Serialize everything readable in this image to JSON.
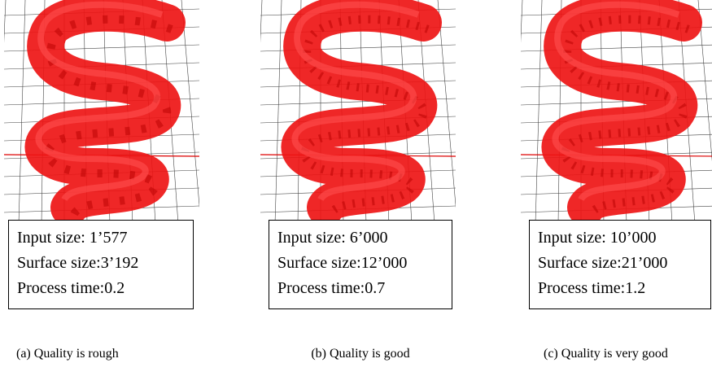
{
  "panels": [
    {
      "lines": [
        "Input size: 1’577",
        "Surface size:3’192",
        "Process time:0.2"
      ],
      "caption": "(a) Quality is rough"
    },
    {
      "lines": [
        "Input size: 6’000",
        "Surface size:12’000",
        "Process time:0.7"
      ],
      "caption": "(b) Quality is good"
    },
    {
      "lines": [
        "Input size: 10’000",
        "Surface size:21’000",
        "Process time:1.2"
      ],
      "caption": "(c) Quality is very good"
    }
  ]
}
